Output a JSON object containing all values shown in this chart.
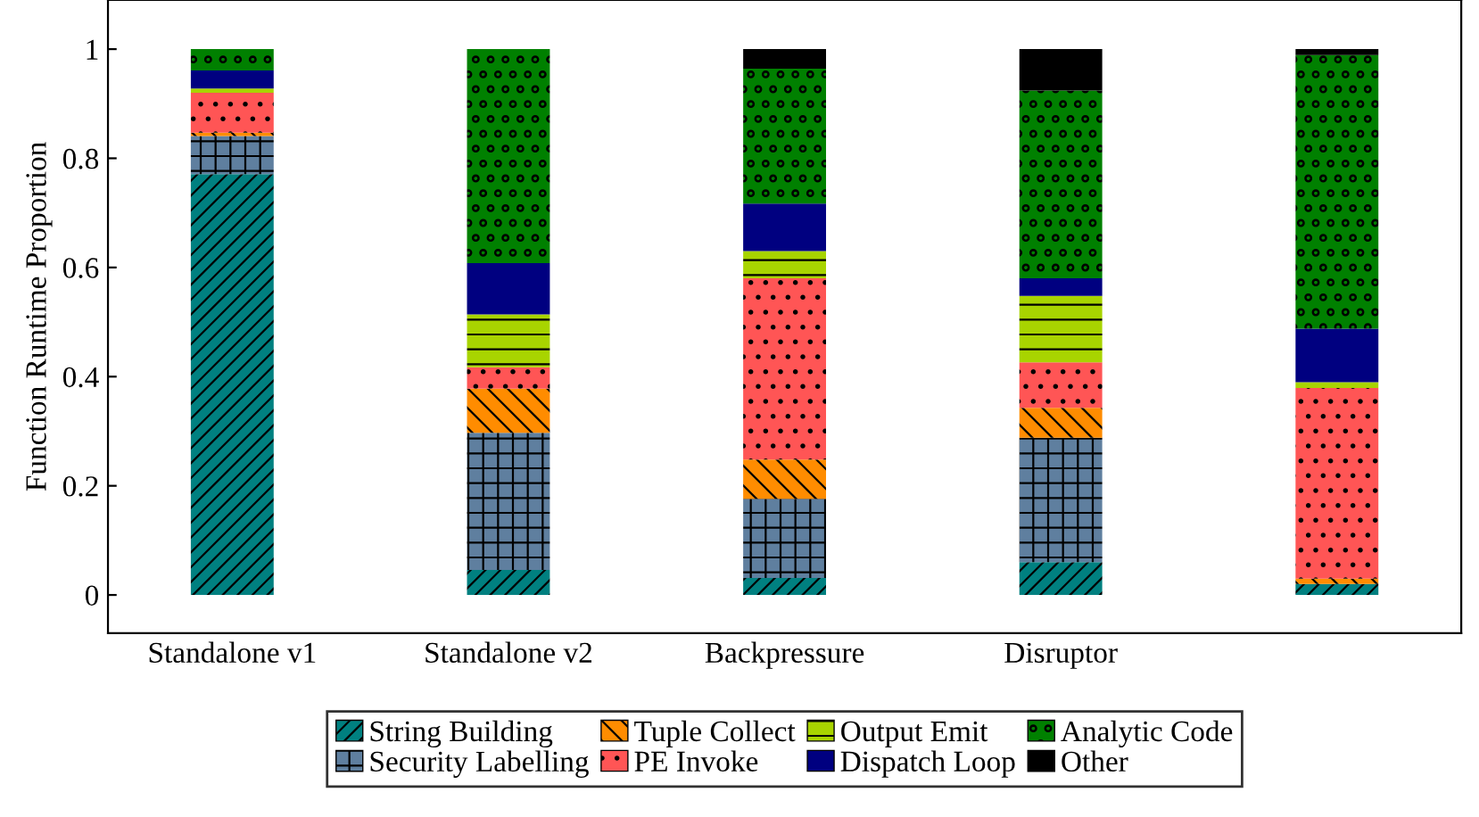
{
  "chart_data": {
    "type": "bar",
    "stacked": true,
    "ylabel": "Function Runtime Proportion",
    "categories": [
      "Standalone v1",
      "Standalone v2",
      "Backpressure",
      "Disruptor",
      null
    ],
    "series": [
      {
        "name": "String Building",
        "color": "#008080",
        "values": [
          0.771,
          0.046,
          0.031,
          0.06,
          0.02
        ]
      },
      {
        "name": "Security Labelling",
        "color": "#5f7f9f",
        "values": [
          0.07,
          0.251,
          0.145,
          0.228,
          0.0
        ]
      },
      {
        "name": "Tuple Collect",
        "color": "#ff8c00",
        "values": [
          0.006,
          0.081,
          0.072,
          0.055,
          0.01
        ]
      },
      {
        "name": "PE Invoke",
        "color": "#ff5555",
        "values": [
          0.073,
          0.039,
          0.332,
          0.083,
          0.349
        ]
      },
      {
        "name": "Output Emit",
        "color": "#a8d400",
        "values": [
          0.008,
          0.097,
          0.05,
          0.122,
          0.011
        ]
      },
      {
        "name": "Dispatch Loop",
        "color": "#000080",
        "values": [
          0.033,
          0.094,
          0.087,
          0.032,
          0.098
        ]
      },
      {
        "name": "Analytic Code",
        "color": "#008000",
        "values": [
          0.039,
          0.392,
          0.247,
          0.344,
          0.501
        ]
      },
      {
        "name": "Other",
        "color": "#000000",
        "values": [
          0.0,
          0.0,
          0.036,
          0.076,
          0.011
        ]
      }
    ],
    "ylim": [
      -0.07,
      1.09
    ],
    "yticks": [
      0,
      0.2,
      0.4,
      0.6,
      0.8,
      1
    ],
    "grid": false,
    "legend": "bottom"
  }
}
